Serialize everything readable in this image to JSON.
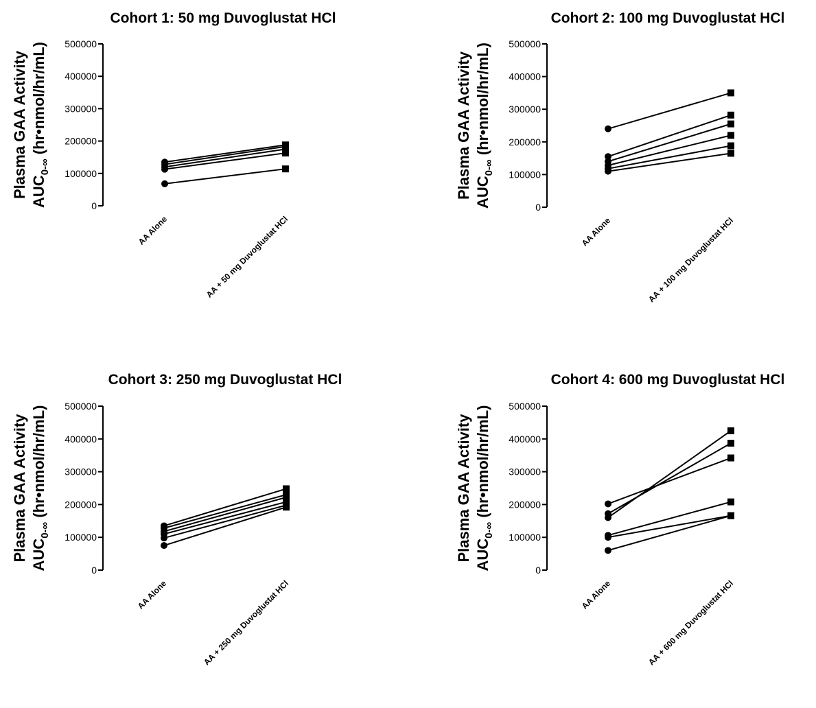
{
  "figure": {
    "style": {
      "ink": "#000000",
      "background": "#ffffff"
    }
  },
  "chart_data": [
    {
      "type": "line",
      "title": "Cohort 1: 50 mg Duvoglustat  HCl",
      "ylabel": {
        "line1": "Plasma GAA Activity",
        "line2_prefix": "AUC",
        "line2_sub": "0-∞",
        "line2_suffix": " (hr•nmol/hr/mL)"
      },
      "ylim": [
        0,
        500000
      ],
      "yticks": [
        "0",
        "100000",
        "200000",
        "300000",
        "400000",
        "500000"
      ],
      "categories": [
        "AA Alone",
        "AA + 50 mg Duvoglustat HCl"
      ],
      "markers": [
        "circle",
        "square"
      ],
      "series": [
        {
          "values": [
            135000,
            188000
          ]
        },
        {
          "values": [
            128000,
            183000
          ]
        },
        {
          "values": [
            120000,
            175000
          ]
        },
        {
          "values": [
            113000,
            163000
          ]
        },
        {
          "values": [
            68000,
            114000
          ]
        }
      ]
    },
    {
      "type": "line",
      "title": "Cohort 2: 100 mg Duvoglustat  HCl",
      "ylabel": {
        "line1": "Plasma GAA Activity",
        "line2_prefix": "AUC",
        "line2_sub": "0-∞",
        "line2_suffix": " (hr•nmol/hr/mL)"
      },
      "ylim": [
        0,
        500000
      ],
      "yticks": [
        "0",
        "100000",
        "200000",
        "300000",
        "400000",
        "500000"
      ],
      "categories": [
        "AA Alone",
        "AA + 100 mg Duvoglustat HCl"
      ],
      "markers": [
        "circle",
        "square"
      ],
      "series": [
        {
          "values": [
            240000,
            350000
          ]
        },
        {
          "values": [
            155000,
            282000
          ]
        },
        {
          "values": [
            140000,
            255000
          ]
        },
        {
          "values": [
            128000,
            220000
          ]
        },
        {
          "values": [
            118000,
            188000
          ]
        },
        {
          "values": [
            110000,
            165000
          ]
        }
      ]
    },
    {
      "type": "line",
      "title": "Cohort 3: 250 mg Duvoglustat  HCl",
      "ylabel": {
        "line1": "Plasma GAA Activity",
        "line2_prefix": "AUC",
        "line2_sub": "0-∞",
        "line2_suffix": " (hr•nmol/hr/mL)"
      },
      "ylim": [
        0,
        500000
      ],
      "yticks": [
        "0",
        "100000",
        "200000",
        "300000",
        "400000",
        "500000"
      ],
      "categories": [
        "AA Alone",
        "AA + 250 mg Duvoglustat HCl"
      ],
      "markers": [
        "circle",
        "square"
      ],
      "series": [
        {
          "values": [
            135000,
            248000
          ]
        },
        {
          "values": [
            128000,
            230000
          ]
        },
        {
          "values": [
            118000,
            222000
          ]
        },
        {
          "values": [
            110000,
            208000
          ]
        },
        {
          "values": [
            98000,
            198000
          ]
        },
        {
          "values": [
            75000,
            192000
          ]
        }
      ]
    },
    {
      "type": "line",
      "title": "Cohort 4: 600 mg Duvoglustat  HCl",
      "ylabel": {
        "line1": "Plasma GAA Activity",
        "line2_prefix": "AUC",
        "line2_sub": "0-∞",
        "line2_suffix": " (hr•nmol/hr/mL)"
      },
      "ylim": [
        0,
        500000
      ],
      "yticks": [
        "0",
        "100000",
        "200000",
        "300000",
        "400000",
        "500000"
      ],
      "categories": [
        "AA Alone",
        "AA + 600 mg Duvoglustat HCl"
      ],
      "markers": [
        "circle",
        "square"
      ],
      "series": [
        {
          "values": [
            202000,
            342000
          ]
        },
        {
          "values": [
            172000,
            387000
          ]
        },
        {
          "values": [
            160000,
            425000
          ]
        },
        {
          "values": [
            106000,
            208000
          ]
        },
        {
          "values": [
            100000,
            166000
          ]
        },
        {
          "values": [
            60000,
            166000
          ]
        }
      ]
    }
  ]
}
